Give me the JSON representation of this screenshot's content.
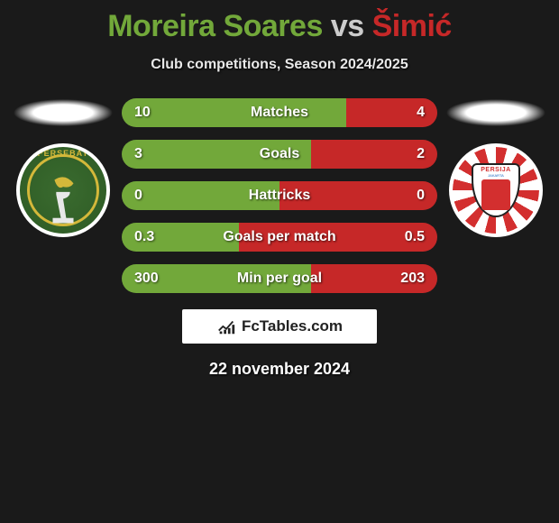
{
  "title": {
    "player1": "Moreira Soares",
    "vs": "vs",
    "player2": "Šimić"
  },
  "subtitle": "Club competitions, Season 2024/2025",
  "colors": {
    "player1": "#72a83a",
    "player2": "#c62828",
    "background": "#1a1a1a",
    "text": "#ffffff"
  },
  "stats": [
    {
      "label": "Matches",
      "left_value": "10",
      "right_value": "4",
      "left_pct": 71,
      "right_pct": 29
    },
    {
      "label": "Goals",
      "left_value": "3",
      "right_value": "2",
      "left_pct": 60,
      "right_pct": 40
    },
    {
      "label": "Hattricks",
      "left_value": "0",
      "right_value": "0",
      "left_pct": 50,
      "right_pct": 50
    },
    {
      "label": "Goals per match",
      "left_value": "0.3",
      "right_value": "0.5",
      "left_pct": 37,
      "right_pct": 63
    },
    {
      "label": "Min per goal",
      "left_value": "300",
      "right_value": "203",
      "left_pct": 60,
      "right_pct": 40
    }
  ],
  "team_left": {
    "short": "PERSEBAY",
    "badge_primary": "#3a6b2f",
    "badge_accent": "#d4b83a"
  },
  "team_right": {
    "short": "PERSIJA",
    "sub": "JAKARTA",
    "badge_primary": "#d32f2f",
    "badge_secondary": "#ffffff"
  },
  "watermark": "FcTables.com",
  "date": "22 november 2024"
}
